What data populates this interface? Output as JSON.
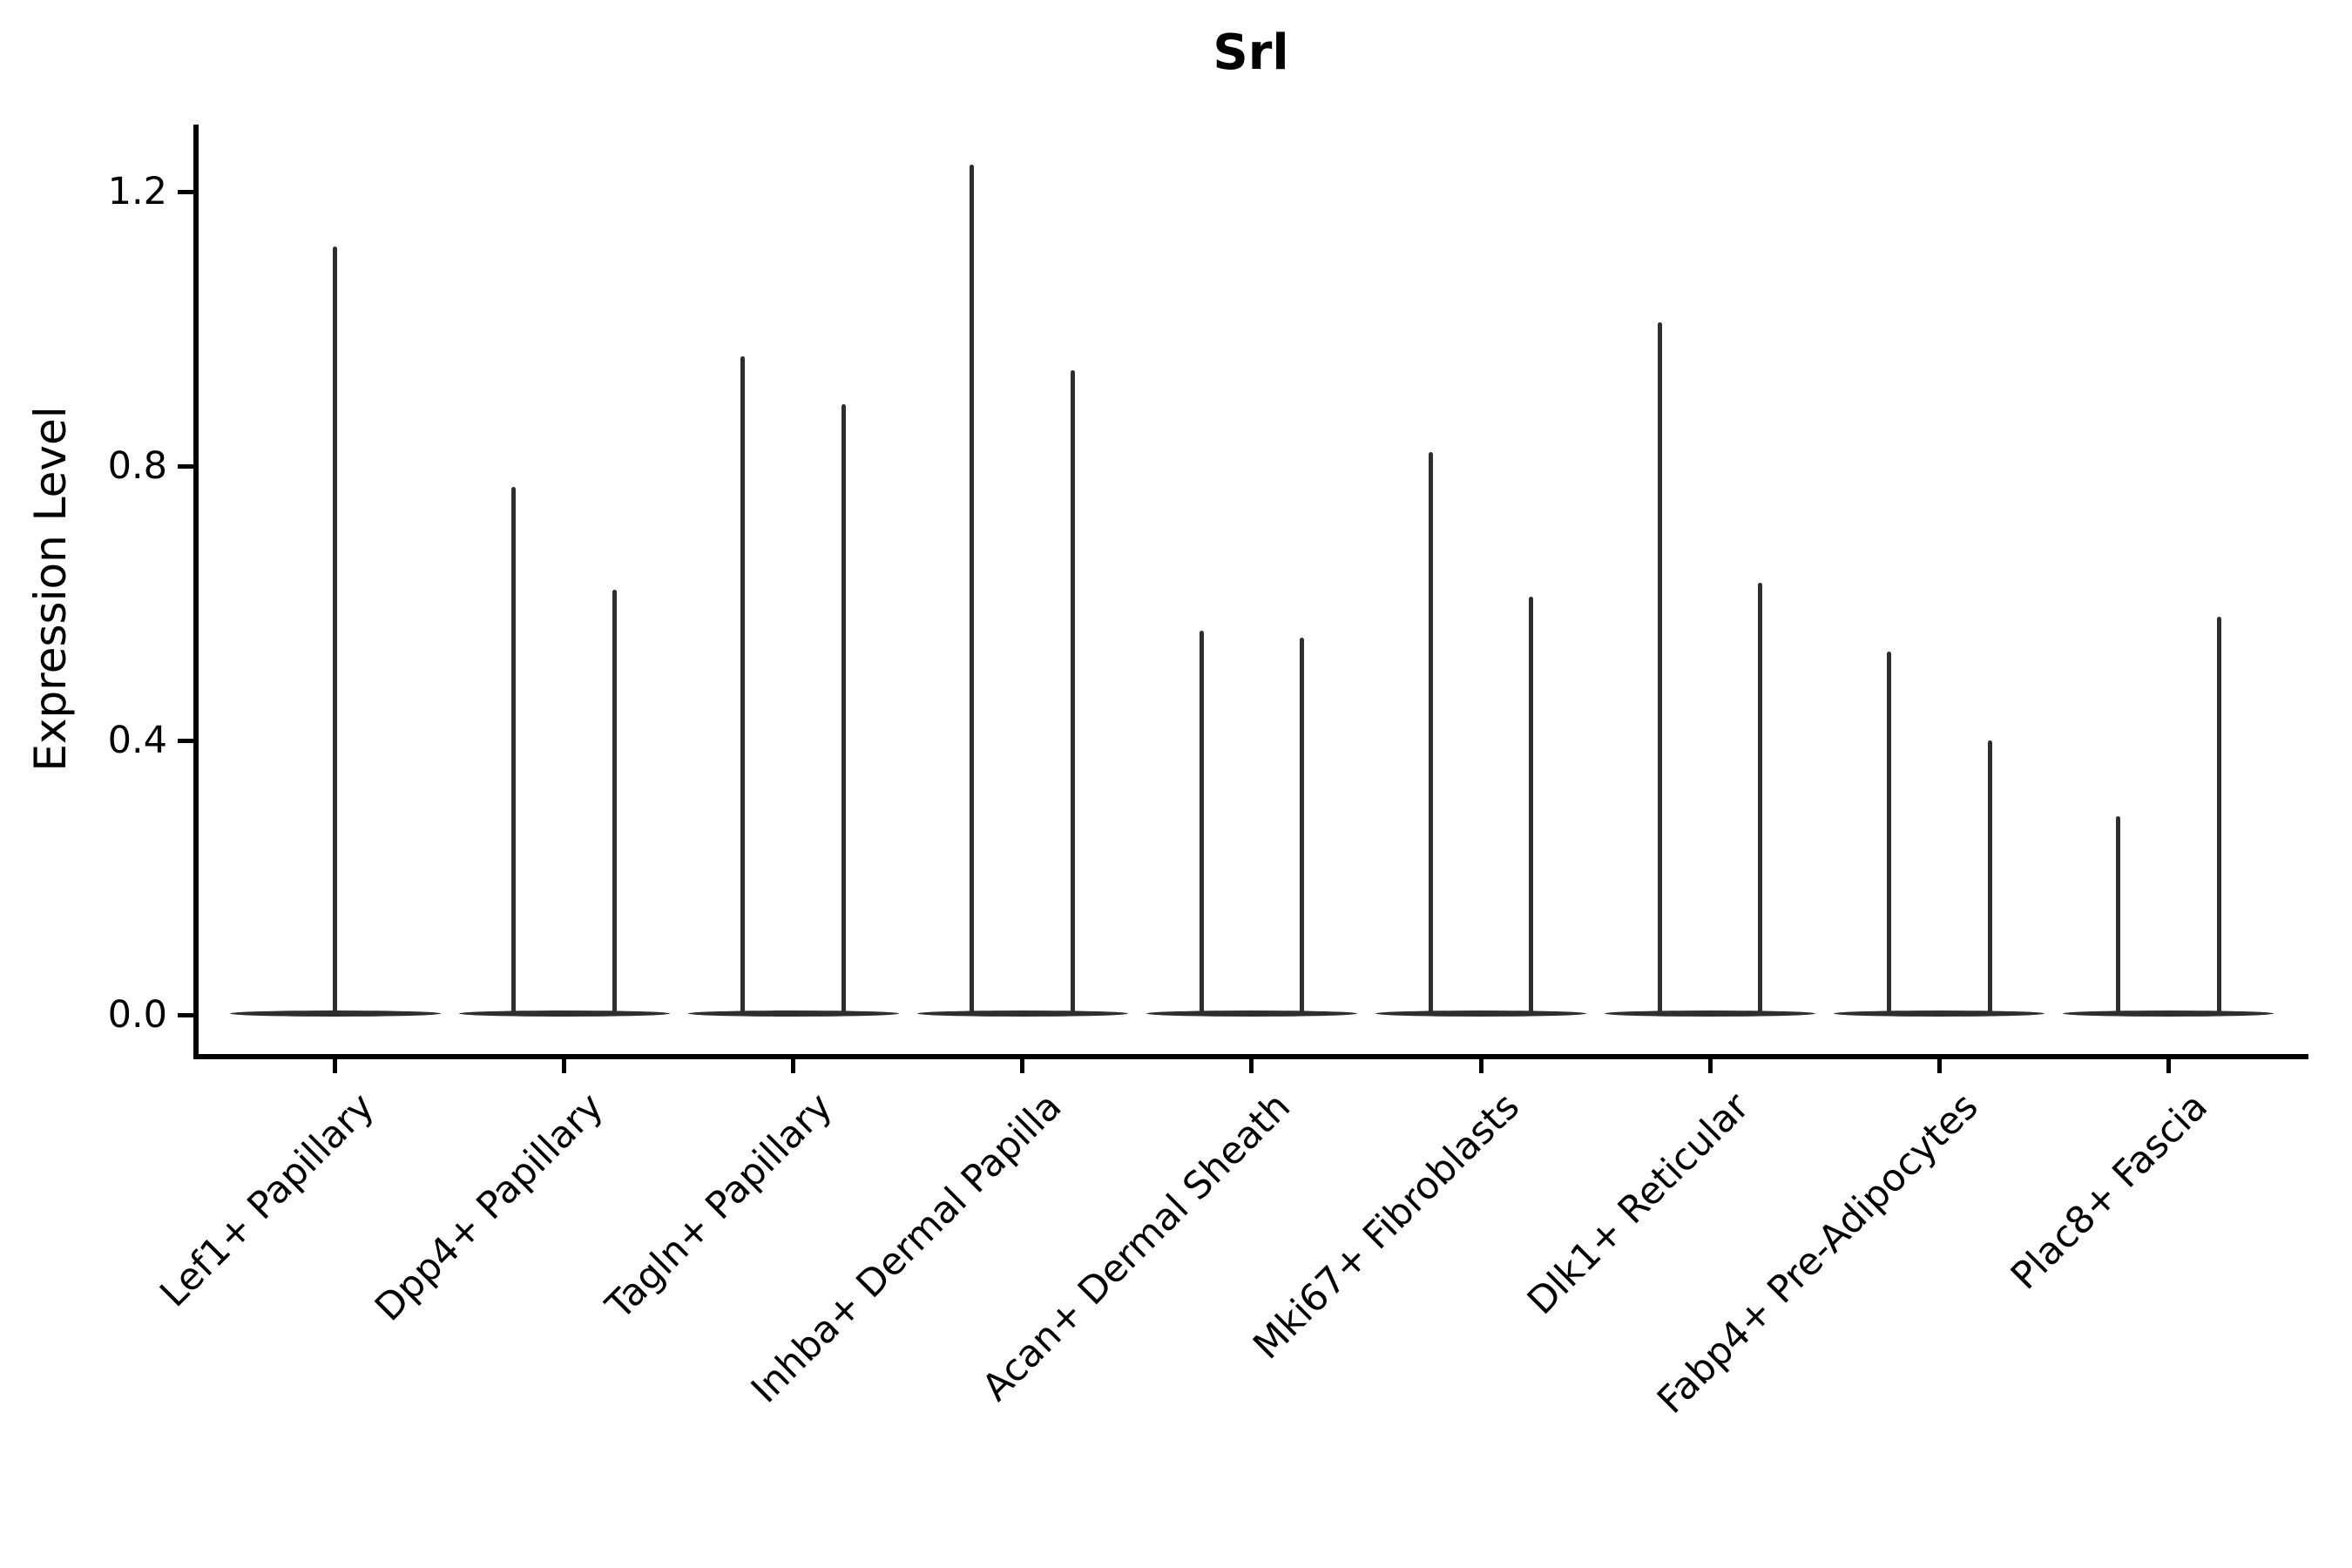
{
  "title": "Srl",
  "y_axis": {
    "label": "Expression Level",
    "tick_labels": [
      "0.0",
      "0.4",
      "0.8",
      "1.2"
    ]
  },
  "colors": {
    "violin": "#2e2e2e",
    "axis": "#000000",
    "background": "#ffffff"
  },
  "chart_data": {
    "type": "violin",
    "title": "Srl",
    "xlabel": "",
    "ylabel": "Expression Level",
    "ylim": [
      0,
      1.3
    ],
    "yticks": [
      0.0,
      0.4,
      0.8,
      1.2
    ],
    "ytick_labels": [
      "0.0",
      "0.4",
      "0.8",
      "1.2"
    ],
    "grid": false,
    "legend": null,
    "x_label_rotation_deg": 45,
    "categories": [
      "Lef1+ Papillary",
      "Dpp4+ Papillary",
      "Tagln+ Papillary",
      "Inhba+ Dermal Papilla",
      "Acan+ Dermal Sheath",
      "Mki67+ Fibroblasts",
      "Dlk1+ Reticular",
      "Fabp4+ Pre-Adipocytes",
      "Plac8+ Fascia"
    ],
    "violins": [
      {
        "category": "Lef1+ Papillary",
        "base_value": 0.0,
        "spike_offsets": [
          0
        ],
        "spike_maxima": [
          1.12
        ]
      },
      {
        "category": "Dpp4+ Papillary",
        "base_value": 0.0,
        "spike_offsets": [
          -0.22,
          0.22
        ],
        "spike_maxima": [
          0.77,
          0.62
        ]
      },
      {
        "category": "Tagln+ Papillary",
        "base_value": 0.0,
        "spike_offsets": [
          -0.22,
          0.22
        ],
        "spike_maxima": [
          0.96,
          0.89
        ]
      },
      {
        "category": "Inhba+ Dermal Papilla",
        "base_value": 0.0,
        "spike_offsets": [
          -0.22,
          0.22
        ],
        "spike_maxima": [
          1.24,
          0.94
        ]
      },
      {
        "category": "Acan+ Dermal Sheath",
        "base_value": 0.0,
        "spike_offsets": [
          -0.22,
          0.22
        ],
        "spike_maxima": [
          0.56,
          0.55
        ]
      },
      {
        "category": "Mki67+ Fibroblasts",
        "base_value": 0.0,
        "spike_offsets": [
          -0.22,
          0.22
        ],
        "spike_maxima": [
          0.82,
          0.61
        ]
      },
      {
        "category": "Dlk1+ Reticular",
        "base_value": 0.0,
        "spike_offsets": [
          -0.22,
          0.22
        ],
        "spike_maxima": [
          1.01,
          0.63
        ]
      },
      {
        "category": "Fabp4+ Pre-Adipocytes",
        "base_value": 0.0,
        "spike_offsets": [
          -0.22,
          0.22
        ],
        "spike_maxima": [
          0.53,
          0.4
        ]
      },
      {
        "category": "Plac8+ Fascia",
        "base_value": 0.0,
        "spike_offsets": [
          -0.22,
          0.22
        ],
        "spike_maxima": [
          0.29,
          0.58
        ]
      }
    ]
  }
}
